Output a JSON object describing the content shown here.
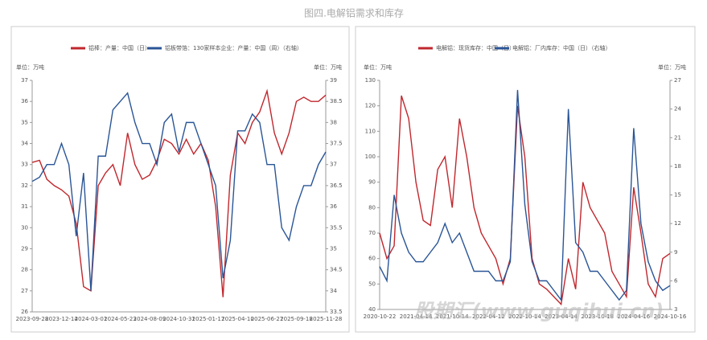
{
  "title": "图四.电解铝需求和库存",
  "watermark": "股期汇(www.guqihui.cn)",
  "chart_data": [
    {
      "type": "line",
      "y_unit_label": "单位：万吨",
      "y2_unit_label": "单位：万吨",
      "categories": [
        "2023-09-28",
        null,
        null,
        null,
        "2023-12-14",
        null,
        null,
        null,
        "2024-03-01",
        null,
        null,
        null,
        "2024-05-23",
        null,
        null,
        null,
        "2024-08-09",
        null,
        null,
        null,
        "2024-10-31",
        null,
        null,
        null,
        "2025-01-17",
        null,
        null,
        null,
        "2025-04-10",
        null,
        null,
        null,
        "2025-06-27",
        null,
        null,
        null,
        "2025-09-18",
        null,
        null,
        null,
        "2025-11-28"
      ],
      "ylim": [
        26,
        37
      ],
      "yticks": [
        26,
        27,
        28,
        29,
        30,
        31,
        32,
        33,
        34,
        35,
        36,
        37
      ],
      "y2lim": [
        33.5,
        39
      ],
      "y2ticks": [
        33.5,
        34,
        34.5,
        35,
        35.5,
        36,
        36.5,
        37,
        37.5,
        38,
        38.5,
        39
      ],
      "series": [
        {
          "name": "铝棒：产量：中国（日）",
          "color": "#c0272d",
          "values": [
            33.1,
            33.2,
            32.3,
            32.0,
            31.8,
            31.5,
            30.2,
            27.2,
            27.0,
            32.0,
            32.6,
            33.0,
            32.0,
            34.5,
            33.0,
            32.3,
            32.5,
            33.2,
            34.2,
            34.0,
            33.5,
            34.2,
            33.5,
            34.0,
            33.2,
            31.0,
            26.7,
            32.5,
            34.5,
            34.0,
            35.0,
            35.5,
            36.5,
            34.5,
            33.5,
            34.5,
            36.0,
            36.2,
            36.0,
            36.0,
            36.3
          ]
        },
        {
          "name": "铝板带箔：130家样本企业：产量：中国（周）（右轴）",
          "color": "#2a5596",
          "axis": "y2",
          "values": [
            36.6,
            36.7,
            37.0,
            37.0,
            37.5,
            37.0,
            35.3,
            36.8,
            34.0,
            37.2,
            37.2,
            38.3,
            38.5,
            38.7,
            38.0,
            37.5,
            37.5,
            37.0,
            38.0,
            38.2,
            37.3,
            38.0,
            38.0,
            37.5,
            37.0,
            36.5,
            34.3,
            35.2,
            37.8,
            37.8,
            38.2,
            38.0,
            37.0,
            37.0,
            35.5,
            35.2,
            36.0,
            36.5,
            36.5,
            37.0,
            37.3
          ]
        }
      ]
    },
    {
      "type": "line",
      "y_unit_label": "单位：万吨",
      "y2_unit_label": "单位：万吨",
      "categories": [
        "2020-10-22",
        null,
        null,
        null,
        null,
        "2021-04-14",
        null,
        null,
        null,
        null,
        "2021-10-14",
        null,
        null,
        null,
        null,
        "2022-04-12",
        null,
        null,
        null,
        null,
        "2022-10-14",
        null,
        null,
        null,
        null,
        "2023-04-14",
        null,
        null,
        null,
        null,
        "2023-10-18",
        null,
        null,
        null,
        null,
        "2024-04-16",
        null,
        null,
        null,
        null,
        "2024-10-16"
      ],
      "ylim": [
        40,
        130
      ],
      "yticks": [
        40,
        50,
        60,
        70,
        80,
        90,
        100,
        110,
        120,
        130
      ],
      "y2lim": [
        3,
        27
      ],
      "y2ticks": [
        3,
        6,
        9,
        12,
        15,
        18,
        21,
        24,
        27
      ],
      "series": [
        {
          "name": "电解铝：现货库存：中国（日）",
          "color": "#c0272d",
          "values": [
            70,
            60,
            65,
            124,
            115,
            90,
            75,
            73,
            95,
            100,
            80,
            115,
            100,
            80,
            70,
            65,
            60,
            50,
            60,
            120,
            100,
            60,
            50,
            48,
            45,
            42,
            60,
            48,
            90,
            80,
            75,
            70,
            55,
            50,
            45,
            88,
            70,
            50,
            45,
            60,
            62
          ]
        },
        {
          "name": "电解铝：厂内库存：中国（日）（右轴）",
          "color": "#2a5596",
          "axis": "y2",
          "values": [
            7.5,
            6,
            15,
            11,
            9,
            8,
            8,
            9,
            10,
            12,
            10,
            11,
            9,
            7,
            7,
            7,
            6,
            6,
            8,
            26,
            14,
            8,
            6,
            6,
            5,
            4,
            24,
            10,
            9,
            7,
            7,
            6,
            5,
            4,
            5,
            22,
            12,
            8,
            6,
            5,
            5.5
          ]
        }
      ]
    }
  ]
}
